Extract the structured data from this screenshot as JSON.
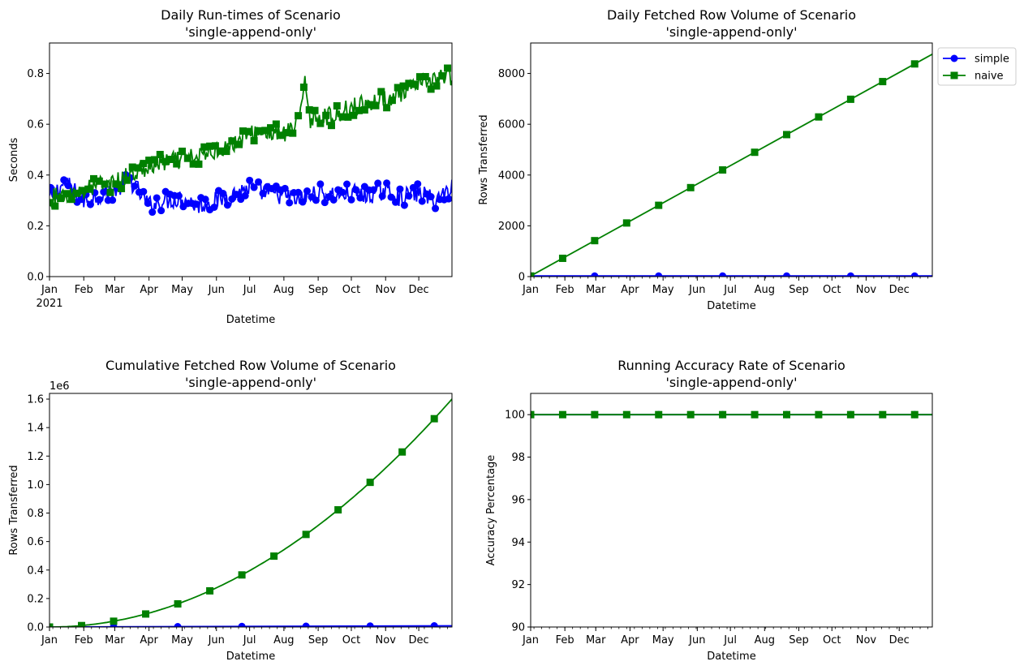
{
  "chart_data": [
    {
      "type": "line",
      "title": "Daily Run-times of Scenario\n'single-append-only'",
      "xlabel": "Datetime",
      "ylabel": "Seconds",
      "x_range": [
        "2021-01-01",
        "2021-12-31"
      ],
      "ylim": [
        0,
        0.92
      ],
      "yticks": [
        0.0,
        0.2,
        0.4,
        0.6,
        0.8
      ],
      "ytick_labels": [
        "0.0",
        "0.2",
        "0.4",
        "0.6",
        "0.8"
      ],
      "xtick_labels": [
        "Jan",
        "Feb",
        "Mar",
        "Apr",
        "May",
        "Jun",
        "Jul",
        "Aug",
        "Sep",
        "Oct",
        "Nov",
        "Dec"
      ],
      "xtick_year": "2021",
      "grid": false,
      "series": [
        {
          "name": "simple",
          "color": "#0000ff",
          "marker": "circle",
          "x": [
            "2021-01-01",
            "2021-01-15",
            "2021-02-01",
            "2021-02-15",
            "2021-03-01",
            "2021-03-15",
            "2021-04-01",
            "2021-04-15",
            "2021-05-01",
            "2021-05-15",
            "2021-06-01",
            "2021-06-15",
            "2021-07-01",
            "2021-07-15",
            "2021-08-01",
            "2021-08-15",
            "2021-09-01",
            "2021-09-15",
            "2021-10-01",
            "2021-10-15",
            "2021-11-01",
            "2021-11-15",
            "2021-12-01",
            "2021-12-15",
            "2021-12-31"
          ],
          "y": [
            0.31,
            0.37,
            0.3,
            0.32,
            0.34,
            0.38,
            0.28,
            0.3,
            0.31,
            0.28,
            0.3,
            0.32,
            0.35,
            0.33,
            0.32,
            0.3,
            0.33,
            0.32,
            0.33,
            0.32,
            0.34,
            0.31,
            0.33,
            0.3,
            0.35
          ]
        },
        {
          "name": "naive",
          "color": "#008000",
          "marker": "square",
          "x": [
            "2021-01-01",
            "2021-01-15",
            "2021-02-01",
            "2021-02-15",
            "2021-03-01",
            "2021-03-15",
            "2021-04-01",
            "2021-04-15",
            "2021-05-01",
            "2021-05-15",
            "2021-06-01",
            "2021-06-15",
            "2021-07-01",
            "2021-07-15",
            "2021-08-01",
            "2021-08-15",
            "2021-08-20",
            "2021-08-25",
            "2021-09-01",
            "2021-09-15",
            "2021-10-01",
            "2021-10-15",
            "2021-11-01",
            "2021-11-15",
            "2021-12-01",
            "2021-12-15",
            "2021-12-31"
          ],
          "y": [
            0.31,
            0.32,
            0.34,
            0.36,
            0.37,
            0.4,
            0.43,
            0.45,
            0.46,
            0.47,
            0.5,
            0.52,
            0.56,
            0.57,
            0.56,
            0.6,
            0.79,
            0.62,
            0.63,
            0.63,
            0.67,
            0.68,
            0.7,
            0.72,
            0.75,
            0.78,
            0.79
          ]
        }
      ]
    },
    {
      "type": "line",
      "title": "Daily Fetched Row Volume of Scenario\n'single-append-only'",
      "xlabel": "Datetime",
      "ylabel": "Rows Transferred",
      "x_range": [
        "2021-01-01",
        "2021-12-31"
      ],
      "ylim": [
        0,
        9200
      ],
      "yticks": [
        0,
        2000,
        4000,
        6000,
        8000
      ],
      "ytick_labels": [
        "0",
        "2000",
        "4000",
        "6000",
        "8000"
      ],
      "xtick_labels": [
        "Jan",
        "Feb",
        "Mar",
        "Apr",
        "May",
        "Jun",
        "Jul",
        "Aug",
        "Sep",
        "Oct",
        "Nov",
        "Dec"
      ],
      "grid": false,
      "legend": {
        "position": "outside-top-right",
        "entries": [
          "simple",
          "naive"
        ]
      },
      "series": [
        {
          "name": "simple",
          "color": "#0000ff",
          "marker": "circle",
          "x": [
            "2021-01-01",
            "2021-12-31"
          ],
          "y": [
            24,
            24
          ]
        },
        {
          "name": "naive",
          "color": "#008000",
          "marker": "square",
          "x": [
            "2021-01-01",
            "2021-12-31"
          ],
          "y": [
            24,
            8760
          ]
        }
      ]
    },
    {
      "type": "line",
      "title": "Cumulative Fetched Row Volume of Scenario\n'single-append-only'",
      "xlabel": "Datetime",
      "ylabel": "Rows Transferred",
      "offset_label": "1e6",
      "x_range": [
        "2021-01-01",
        "2021-12-31"
      ],
      "ylim": [
        0,
        1.64
      ],
      "yticks": [
        0.0,
        0.2,
        0.4,
        0.6,
        0.8,
        1.0,
        1.2,
        1.4,
        1.6
      ],
      "ytick_labels": [
        "0.0",
        "0.2",
        "0.4",
        "0.6",
        "0.8",
        "1.0",
        "1.2",
        "1.4",
        "1.6"
      ],
      "xtick_labels": [
        "Jan",
        "Feb",
        "Mar",
        "Apr",
        "May",
        "Jun",
        "Jul",
        "Aug",
        "Sep",
        "Oct",
        "Nov",
        "Dec"
      ],
      "grid": false,
      "series": [
        {
          "name": "simple",
          "color": "#0000ff",
          "marker": "circle",
          "x": [
            "2021-01-01",
            "2021-12-31"
          ],
          "y": [
            0.0,
            0.0088
          ]
        },
        {
          "name": "naive",
          "color": "#008000",
          "marker": "square",
          "x": [
            "2021-01-01",
            "2021-12-31"
          ],
          "y": [
            0.0,
            1.6
          ]
        }
      ]
    },
    {
      "type": "line",
      "title": "Running Accuracy Rate of Scenario\n'single-append-only'",
      "xlabel": "Datetime",
      "ylabel": "Accuracy Percentage",
      "x_range": [
        "2021-01-01",
        "2021-12-31"
      ],
      "ylim": [
        90,
        101
      ],
      "yticks": [
        90,
        92,
        94,
        96,
        98,
        100
      ],
      "ytick_labels": [
        "90",
        "92",
        "94",
        "96",
        "98",
        "100"
      ],
      "xtick_labels": [
        "Jan",
        "Feb",
        "Mar",
        "Apr",
        "May",
        "Jun",
        "Jul",
        "Aug",
        "Sep",
        "Oct",
        "Nov",
        "Dec"
      ],
      "grid": false,
      "series": [
        {
          "name": "simple",
          "color": "#0000ff",
          "marker": "circle",
          "x": [
            "2021-01-01",
            "2021-12-31"
          ],
          "y": [
            100,
            100
          ]
        },
        {
          "name": "naive",
          "color": "#008000",
          "marker": "square",
          "x": [
            "2021-01-01",
            "2021-12-31"
          ],
          "y": [
            100,
            100
          ]
        }
      ]
    }
  ]
}
